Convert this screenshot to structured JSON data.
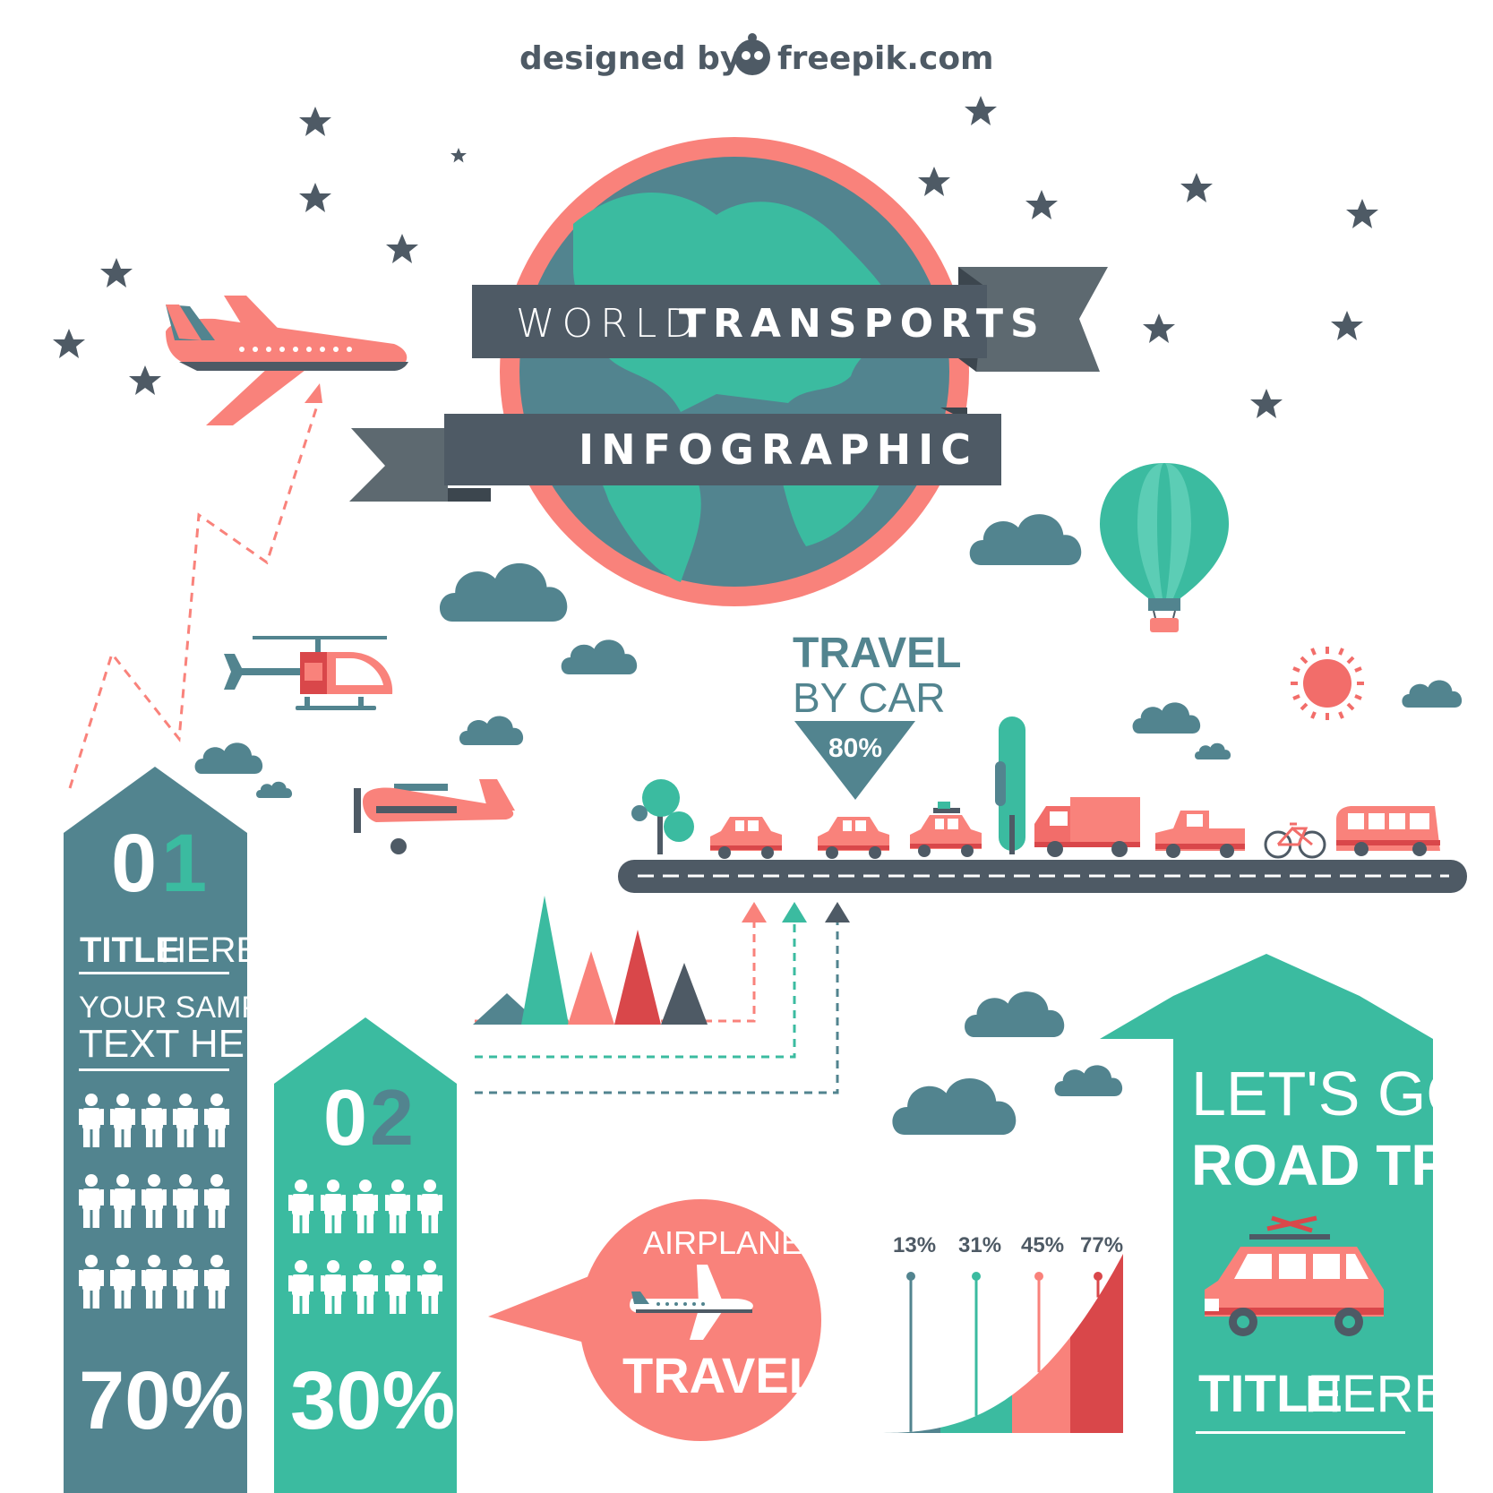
{
  "credit": {
    "prefix": "designed by",
    "site": "freepik.com"
  },
  "title": {
    "word1": "WORLD",
    "word2": "TRANSPORTS",
    "subtitle": "INFOGRAPHIC"
  },
  "colors": {
    "slate": "#4e5a65",
    "teal": "#3bbba0",
    "teal_dark": "#52848f",
    "coral": "#f9827b",
    "red": "#d9474a",
    "white": "#ffffff"
  },
  "travel_by_car": {
    "line1": "TRAVEL",
    "line2": "BY CAR",
    "percent": "80%"
  },
  "banner1": {
    "number_a": "0",
    "number_b": "1",
    "title_bold": "TITLE",
    "title_light": "HERE",
    "sample_line1": "YOUR SAMPLE",
    "sample_line2": "TEXT HERE",
    "percent": "70%",
    "people_count": 15
  },
  "banner2": {
    "number_a": "0",
    "number_b": "2",
    "percent": "30%",
    "people_count": 10
  },
  "airplane_bubble": {
    "label": "AIRPLANE",
    "cta": "TRAVEL!"
  },
  "chart_data": {
    "type": "area",
    "labels": [
      "13%",
      "31%",
      "45%",
      "77%"
    ],
    "values": [
      13,
      31,
      45,
      77
    ]
  },
  "road_trip": {
    "line1": "LET'S GO!",
    "line2": "ROAD TRIP",
    "title_bold": "TITLE",
    "title_light": "HERE"
  },
  "icons": [
    "star-icon",
    "airplane-icon",
    "helicopter-icon",
    "biplane-icon",
    "hot-air-balloon-icon",
    "cloud-icon",
    "sun-icon",
    "tree-icon",
    "car-icon",
    "truck-icon",
    "bicycle-icon",
    "bus-icon",
    "person-icon",
    "globe-icon"
  ]
}
